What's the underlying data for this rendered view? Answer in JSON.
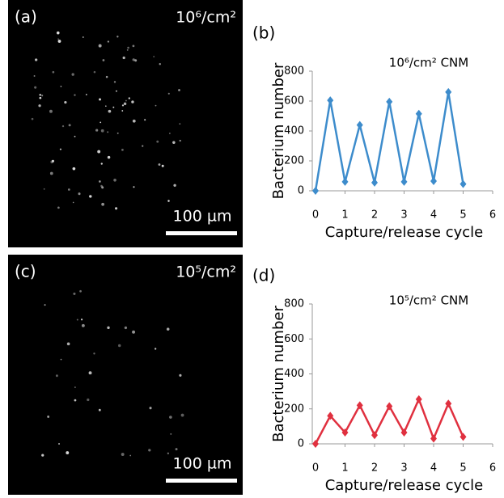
{
  "images": [
    {
      "label": "(a)",
      "annotation": "10⁶/cm²",
      "scale_bar": "100 µm"
    },
    {
      "label": "(c)",
      "annotation": "10⁵/cm²",
      "scale_bar": "100 µm"
    }
  ],
  "chart_data": [
    {
      "type": "line",
      "panel_label": "(b)",
      "annotation": "10⁶/cm² CNM",
      "x_label": "Capture/release cycle",
      "y_label": "Bacterium number",
      "x": [
        0,
        0.5,
        1,
        1.5,
        2,
        2.5,
        3,
        3.5,
        4,
        4.5,
        5
      ],
      "values": [
        0,
        605,
        60,
        440,
        55,
        595,
        60,
        515,
        65,
        660,
        45
      ],
      "color": "#3d8ccc",
      "xlim": [
        0,
        6
      ],
      "ylim": [
        0,
        800
      ],
      "xticks": [
        0,
        1,
        2,
        3,
        4,
        5,
        6
      ],
      "yticks": [
        0,
        200,
        400,
        600,
        800
      ]
    },
    {
      "type": "line",
      "panel_label": "(d)",
      "annotation": "10⁵/cm² CNM",
      "x_label": "Capture/release cycle",
      "y_label": "Bacterium number",
      "x": [
        0,
        0.5,
        1,
        1.5,
        2,
        2.5,
        3,
        3.5,
        4,
        4.5,
        5
      ],
      "values": [
        0,
        160,
        65,
        220,
        50,
        215,
        65,
        255,
        30,
        230,
        40
      ],
      "color": "#e0303f",
      "xlim": [
        0,
        6
      ],
      "ylim": [
        0,
        800
      ],
      "xticks": [
        0,
        1,
        2,
        3,
        4,
        5,
        6
      ],
      "yticks": [
        0,
        200,
        400,
        600,
        800
      ]
    }
  ]
}
